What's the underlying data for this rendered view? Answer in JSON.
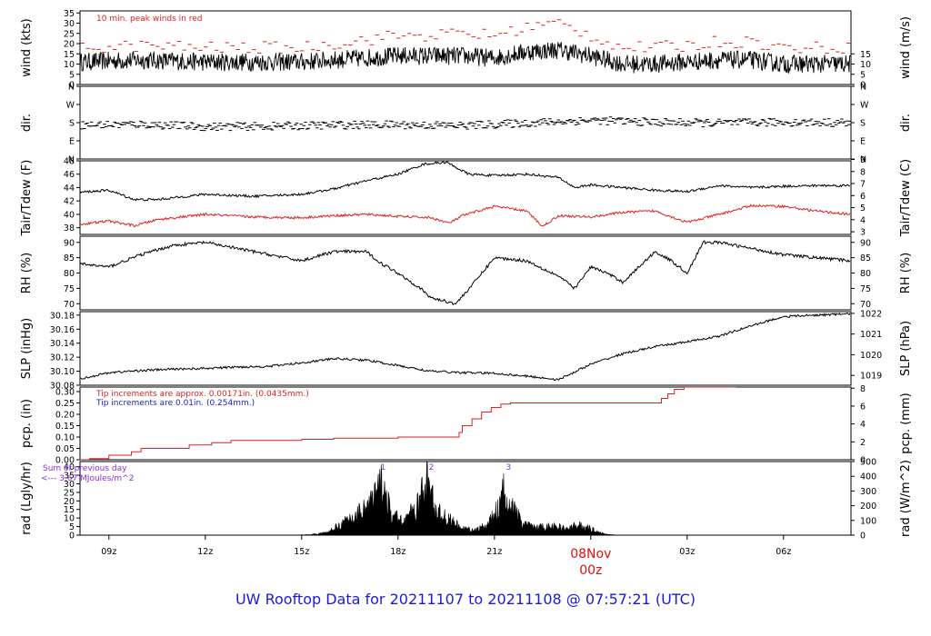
{
  "footer_title": "UW Rooftop Data for 20211107  to  20211108 @ 07:57:21  (UTC)",
  "colors": {
    "main": "#000000",
    "red": "#dd2222",
    "blue": "#1a1acc",
    "purple": "#8a2be2",
    "title": "#1a1adb"
  },
  "time_axis": {
    "range_hours": [
      8.1,
      32.1
    ],
    "ticks": [
      {
        "h": 9,
        "label": "09z"
      },
      {
        "h": 12,
        "label": "12z"
      },
      {
        "h": 15,
        "label": "15z"
      },
      {
        "h": 18,
        "label": "18z"
      },
      {
        "h": 21,
        "label": "21z"
      },
      {
        "h": 27,
        "label": "03z"
      },
      {
        "h": 30,
        "label": "06z"
      }
    ],
    "day_marker": {
      "h": 24,
      "date": "08Nov",
      "time": "00z"
    }
  },
  "chart_data": [
    {
      "id": "wind",
      "type": "line",
      "ylabel_left": "wind (kts)",
      "ylabel_right": "wind (m/s)",
      "ylim": [
        0,
        36
      ],
      "left_ticks": [
        0,
        5,
        10,
        15,
        20,
        25,
        30,
        35
      ],
      "right_ticks": [
        {
          "v": 0,
          "label": "0"
        },
        {
          "v": 5,
          "label": "5"
        },
        {
          "v": 10,
          "label": "10"
        },
        {
          "v": 15,
          "label": "15"
        }
      ],
      "right_scale": 1.9438,
      "annotations": [
        "10 min. peak winds in red"
      ],
      "series": [
        {
          "color": "black",
          "hours": [
            8.1,
            10,
            12,
            14,
            15,
            16,
            17,
            18,
            19,
            20,
            21,
            22,
            23,
            24,
            25,
            26,
            27,
            28,
            29,
            30,
            31,
            32.1
          ],
          "values": [
            11,
            12,
            11,
            11,
            11,
            12,
            13,
            14,
            14,
            14,
            13,
            16,
            17,
            14,
            10,
            10,
            11,
            12,
            12,
            10,
            10,
            10
          ]
        },
        {
          "color": "red",
          "style": "dashes",
          "hours": [
            8.1,
            10,
            12,
            14,
            15,
            16,
            17,
            18,
            19,
            20,
            21,
            22,
            23,
            24,
            25,
            26,
            27,
            28,
            29,
            30,
            31,
            32.1
          ],
          "values": [
            18,
            19,
            18,
            18,
            18,
            20,
            22,
            24,
            24,
            25,
            24,
            28,
            30,
            24,
            18,
            18,
            19,
            21,
            21,
            18,
            18,
            18
          ]
        }
      ]
    },
    {
      "id": "dir",
      "type": "scatter",
      "ylabel_left": "dir.",
      "ylabel_right": "dir.",
      "ylim": [
        0,
        360
      ],
      "left_ticks": [
        {
          "v": 0,
          "label": "N"
        },
        {
          "v": 90,
          "label": "E"
        },
        {
          "v": 180,
          "label": "S"
        },
        {
          "v": 270,
          "label": "W"
        },
        {
          "v": 360,
          "label": "N"
        }
      ],
      "right_ticks": [
        {
          "v": 0,
          "label": "N"
        },
        {
          "v": 90,
          "label": "E"
        },
        {
          "v": 180,
          "label": "S"
        },
        {
          "v": 270,
          "label": "W"
        },
        {
          "v": 360,
          "label": "N"
        }
      ],
      "series": [
        {
          "color": "black",
          "hours": [
            8.1,
            10,
            12,
            14,
            16,
            18,
            20,
            22,
            24,
            26,
            28,
            30,
            32.1
          ],
          "values": [
            168,
            172,
            160,
            162,
            168,
            170,
            165,
            178,
            192,
            182,
            178,
            182,
            180
          ]
        }
      ]
    },
    {
      "id": "temp",
      "type": "line",
      "ylabel_left": "Tair/Tdew (F)",
      "ylabel_right": "Tair/Tdew (C)",
      "ylim": [
        37,
        48
      ],
      "left_ticks": [
        38,
        40,
        42,
        44,
        46,
        48
      ],
      "right_ticks": [
        {
          "v": 37.4,
          "label": "3"
        },
        {
          "v": 39.2,
          "label": "4"
        },
        {
          "v": 41,
          "label": "5"
        },
        {
          "v": 42.8,
          "label": "6"
        },
        {
          "v": 44.6,
          "label": "7"
        },
        {
          "v": 46.4,
          "label": "8"
        },
        {
          "v": 48.2,
          "label": "9"
        }
      ],
      "series": [
        {
          "color": "black",
          "name": "Tair",
          "hours": [
            8.1,
            9,
            9.8,
            10.5,
            12,
            13.5,
            15,
            16,
            17,
            18,
            18.8,
            19.5,
            20.2,
            21,
            22,
            23,
            23.5,
            24,
            25,
            26,
            27,
            28,
            29,
            30,
            31,
            32.1
          ],
          "values": [
            43.3,
            43.6,
            42.2,
            42.2,
            43.0,
            42.7,
            43.0,
            43.8,
            45.0,
            46.0,
            47.5,
            47.8,
            46.0,
            45.8,
            46.0,
            45.5,
            44.0,
            44.4,
            44.0,
            43.6,
            43.4,
            44.3,
            44.0,
            44.2,
            44.3,
            44.3
          ]
        },
        {
          "color": "red",
          "name": "Tdew",
          "hours": [
            8.1,
            9,
            9.8,
            10.5,
            12,
            13.5,
            15,
            16,
            17,
            18,
            19,
            19.6,
            20,
            21,
            22,
            22.5,
            23,
            24,
            25,
            26,
            27,
            28,
            29,
            30,
            31,
            32.1
          ],
          "values": [
            38.5,
            39.0,
            38.3,
            39.2,
            40.0,
            39.6,
            39.5,
            39.8,
            40.0,
            39.7,
            39.5,
            38.7,
            39.8,
            41.2,
            40.5,
            38.2,
            39.8,
            39.6,
            40.3,
            40.5,
            38.8,
            40.0,
            41.3,
            41.2,
            40.5,
            40.0
          ]
        }
      ]
    },
    {
      "id": "rh",
      "type": "line",
      "ylabel_left": "RH (%)",
      "ylabel_right": "RH (%)",
      "ylim": [
        68,
        92
      ],
      "left_ticks": [
        70,
        75,
        80,
        85,
        90
      ],
      "right_ticks": [
        {
          "v": 70,
          "label": "70"
        },
        {
          "v": 75,
          "label": "75"
        },
        {
          "v": 80,
          "label": "80"
        },
        {
          "v": 85,
          "label": "85"
        },
        {
          "v": 90,
          "label": "90"
        }
      ],
      "series": [
        {
          "color": "black",
          "hours": [
            8.1,
            9,
            10,
            11,
            12,
            13,
            14,
            15,
            16,
            17,
            17.5,
            18,
            18.7,
            19,
            19.8,
            20.3,
            21,
            22,
            23,
            23.5,
            24,
            24.5,
            25,
            26,
            26.5,
            27,
            27.5,
            28,
            29,
            30,
            31,
            32.1
          ],
          "values": [
            83,
            82,
            86,
            89,
            90,
            88,
            86,
            84,
            87,
            87,
            83,
            80,
            75,
            72,
            70,
            76,
            85,
            84,
            79,
            75,
            82,
            80,
            77,
            87,
            84,
            80,
            90,
            90,
            88,
            86,
            85,
            84
          ]
        }
      ]
    },
    {
      "id": "slp",
      "type": "line",
      "ylabel_left": "SLP (inHg)",
      "ylabel_right": "SLP (hPa)",
      "ylim": [
        30.08,
        30.185
      ],
      "left_ticks": [
        30.08,
        30.1,
        30.12,
        30.14,
        30.16,
        30.18
      ],
      "right_ticks": [
        {
          "v": 30.094,
          "label": "1019"
        },
        {
          "v": 30.1235,
          "label": "1020"
        },
        {
          "v": 30.153,
          "label": "1021"
        },
        {
          "v": 30.1825,
          "label": "1022"
        }
      ],
      "series": [
        {
          "color": "black",
          "hours": [
            8.1,
            9,
            10,
            11,
            12,
            13,
            14,
            15,
            16,
            17,
            18,
            19,
            20,
            21,
            22,
            23,
            24,
            25,
            26,
            27,
            28,
            29,
            30,
            31,
            32.1
          ],
          "values": [
            30.089,
            30.098,
            30.101,
            30.103,
            30.104,
            30.106,
            30.107,
            30.112,
            30.118,
            30.116,
            30.108,
            30.1,
            30.098,
            30.097,
            30.093,
            30.088,
            30.11,
            30.125,
            30.135,
            30.142,
            30.15,
            30.165,
            30.178,
            30.18,
            30.182
          ]
        }
      ]
    },
    {
      "id": "pcp",
      "type": "line",
      "ylabel_left": "pcp. (in)",
      "ylabel_right": "pcp. (mm)",
      "ylim": [
        0,
        0.32
      ],
      "left_ticks": [
        0.0,
        0.05,
        0.1,
        0.15,
        0.2,
        0.25,
        0.3
      ],
      "right_ticks": [
        {
          "v": 0,
          "label": "0"
        },
        {
          "v": 0.0787,
          "label": "2"
        },
        {
          "v": 0.1575,
          "label": "4"
        },
        {
          "v": 0.2362,
          "label": "6"
        },
        {
          "v": 0.315,
          "label": "8"
        }
      ],
      "annotations": [
        "Tip increments are approx. 0.00171in. (0.0435mm.)",
        "Tip increments are 0.01in. (0.254mm.)"
      ],
      "series": [
        {
          "color": "red",
          "style": "step",
          "hours": [
            8.1,
            8.4,
            9.0,
            9.7,
            10.0,
            11.5,
            12.2,
            12.8,
            15.0,
            16.0,
            18.0,
            19.5,
            19.9,
            20.0,
            20.3,
            20.6,
            20.9,
            21.2,
            21.5,
            23.5,
            26.0,
            26.2,
            26.4,
            26.6,
            26.9,
            28.0,
            28.5,
            32.1
          ],
          "values": [
            0.0,
            0.005,
            0.02,
            0.035,
            0.05,
            0.065,
            0.075,
            0.085,
            0.09,
            0.095,
            0.1,
            0.1,
            0.12,
            0.15,
            0.18,
            0.21,
            0.23,
            0.245,
            0.25,
            0.25,
            0.25,
            0.27,
            0.29,
            0.31,
            0.32,
            0.32,
            0.325,
            0.325
          ]
        }
      ]
    },
    {
      "id": "rad",
      "type": "area",
      "ylabel_left": "rad (Lgly/hr)",
      "ylabel_right": "rad (W/m^2)",
      "ylim": [
        0,
        43
      ],
      "left_ticks": [
        0,
        5,
        10,
        15,
        20,
        25,
        30,
        35,
        40
      ],
      "right_ticks": [
        {
          "v": 0,
          "label": "0"
        },
        {
          "v": 8.6,
          "label": "100"
        },
        {
          "v": 17.2,
          "label": "200"
        },
        {
          "v": 25.8,
          "label": "300"
        },
        {
          "v": 34.4,
          "label": "400"
        },
        {
          "v": 43.0,
          "label": "500"
        }
      ],
      "annotations": [
        "Sum of previous day",
        "<--- 3.67 MJoules/m^2"
      ],
      "peak_labels": [
        {
          "h": 17.4,
          "label": "1"
        },
        {
          "h": 18.9,
          "label": "2"
        },
        {
          "h": 21.3,
          "label": "3"
        }
      ],
      "series": [
        {
          "color": "black",
          "hours": [
            8.1,
            14.8,
            15.3,
            15.8,
            16.2,
            16.6,
            17.0,
            17.3,
            17.5,
            17.8,
            18.2,
            18.6,
            18.9,
            19.2,
            19.6,
            20.0,
            20.4,
            20.8,
            21.1,
            21.3,
            21.5,
            21.9,
            22.3,
            22.8,
            23.3,
            23.6,
            24.0,
            24.4,
            24.8,
            32.1
          ],
          "values": [
            0,
            0,
            0.5,
            2,
            8,
            14,
            22,
            30,
            42,
            14,
            12,
            22,
            43,
            18,
            12,
            5,
            4,
            8,
            20,
            34,
            24,
            8,
            6,
            7,
            5,
            8,
            5,
            1,
            0,
            0
          ]
        }
      ]
    }
  ]
}
